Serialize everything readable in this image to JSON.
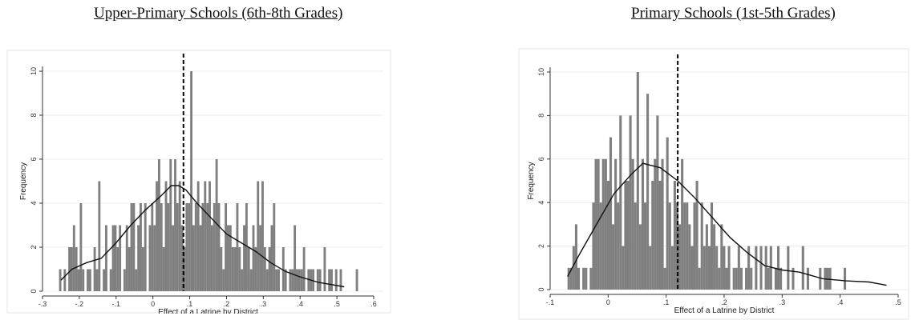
{
  "chart_data": [
    {
      "type": "bar",
      "title": "Upper-Primary Schools (6th-8th Grades)",
      "xlabel": "Effect of a Latrine by District",
      "ylabel": "Frequency",
      "xlim": [
        -0.3,
        0.6
      ],
      "ylim": [
        0,
        10
      ],
      "xticks": [
        "-.3",
        "-.2",
        "-.1",
        "0",
        ".1",
        ".2",
        ".3",
        ".4",
        ".5",
        ".6"
      ],
      "yticks": [
        "0",
        "2",
        "4",
        "6",
        "8",
        "10"
      ],
      "grid": true,
      "vline_x": 0.083,
      "bin_start": -0.255,
      "bin_width": 0.00625,
      "values": [
        1,
        0,
        1,
        0,
        2,
        2,
        3,
        2,
        1,
        4,
        1,
        0,
        1,
        1,
        0,
        2,
        1,
        5,
        0,
        1,
        3,
        0,
        1,
        3,
        3,
        2,
        3,
        0,
        1,
        3,
        2,
        4,
        4,
        1,
        3,
        4,
        2,
        4,
        0,
        3,
        4,
        3,
        5,
        6,
        4,
        2,
        5,
        4,
        6,
        3,
        6,
        4,
        5,
        3,
        2,
        4,
        4,
        10,
        3,
        4,
        5,
        3,
        4,
        5,
        4,
        5,
        3,
        4,
        6,
        4,
        2,
        1,
        4,
        3,
        3,
        2,
        2,
        4,
        2,
        1,
        3,
        4,
        2,
        1,
        3,
        2,
        5,
        3,
        5,
        2,
        1,
        2,
        3,
        4,
        1,
        1,
        0,
        2,
        1,
        0,
        1,
        1,
        3,
        1,
        1,
        1,
        2,
        0,
        1,
        1,
        1,
        0,
        1,
        1,
        0,
        2,
        0,
        1,
        1,
        0,
        1,
        0,
        1,
        0,
        0,
        0,
        0,
        0,
        0,
        1
      ],
      "density": {
        "x": [
          -0.25,
          -0.22,
          -0.18,
          -0.14,
          -0.1,
          -0.06,
          -0.02,
          0.02,
          0.05,
          0.07,
          0.09,
          0.12,
          0.16,
          0.2,
          0.24,
          0.28,
          0.32,
          0.36,
          0.4,
          0.45,
          0.52
        ],
        "y": [
          0.5,
          1.0,
          1.3,
          1.5,
          2.2,
          3.0,
          3.7,
          4.3,
          4.8,
          4.8,
          4.6,
          4.0,
          3.3,
          2.6,
          2.2,
          1.8,
          1.3,
          0.9,
          0.65,
          0.4,
          0.2
        ]
      }
    },
    {
      "type": "bar",
      "title": "Primary Schools (1st-5th Grades)",
      "xlabel": "Effect of a Latrine by District",
      "ylabel": "Frequency",
      "xlim": [
        -0.1,
        0.5
      ],
      "ylim": [
        0,
        10
      ],
      "xticks": [
        "-.1",
        "0",
        ".1",
        ".2",
        ".3",
        ".4",
        ".5"
      ],
      "yticks": [
        "0",
        "2",
        "4",
        "6",
        "8",
        "10"
      ],
      "grid": true,
      "vline_x": 0.12,
      "bin_start": -0.07,
      "bin_width": 0.00425,
      "values": [
        1,
        1,
        2,
        3,
        1,
        0,
        1,
        1,
        0,
        1,
        4,
        6,
        6,
        4,
        6,
        6,
        5,
        7,
        3,
        6,
        4,
        8,
        2,
        5,
        5,
        8,
        6,
        4,
        10,
        3,
        6,
        4,
        9,
        2,
        5,
        6,
        8,
        5,
        6,
        1,
        7,
        4,
        2,
        5,
        4,
        3,
        6,
        4,
        4,
        3,
        2,
        4,
        5,
        1,
        4,
        2,
        3,
        2,
        4,
        3,
        2,
        1,
        3,
        2,
        1,
        2,
        0,
        1,
        1,
        2,
        1,
        0,
        1,
        2,
        1,
        0,
        2,
        0,
        2,
        0,
        2,
        1,
        2,
        0,
        1,
        2,
        1,
        0,
        0,
        2,
        0,
        1,
        0,
        0,
        0,
        2,
        0,
        1,
        0,
        0,
        0,
        0,
        1,
        0,
        1,
        1,
        1,
        0,
        0,
        0,
        0,
        0,
        1
      ],
      "density": {
        "x": [
          -0.07,
          -0.05,
          -0.02,
          0.01,
          0.04,
          0.06,
          0.09,
          0.12,
          0.15,
          0.18,
          0.21,
          0.24,
          0.27,
          0.3,
          0.33,
          0.37,
          0.41,
          0.45,
          0.48
        ],
        "y": [
          0.6,
          1.6,
          3.0,
          4.4,
          5.3,
          5.8,
          5.6,
          5.0,
          4.2,
          3.3,
          2.4,
          1.7,
          1.1,
          0.9,
          0.8,
          0.5,
          0.4,
          0.35,
          0.2
        ]
      }
    }
  ]
}
